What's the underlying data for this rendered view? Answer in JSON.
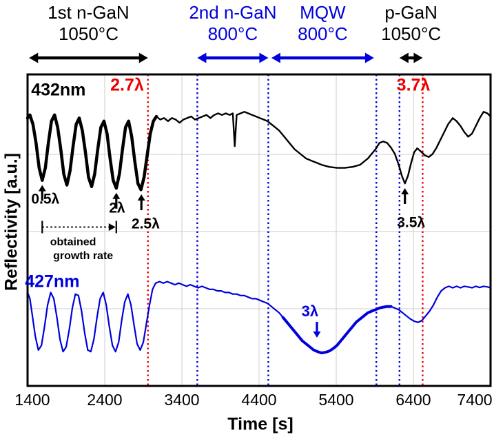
{
  "chart_data": {
    "type": "line",
    "xlabel": "Time [s]",
    "ylabel": "Reflectivity [a.u.]",
    "x_range": [
      1400,
      7400
    ],
    "x_ticks": [
      1400,
      2400,
      3400,
      4400,
      5400,
      6400,
      7400
    ],
    "ylim": [
      0,
      100
    ],
    "y_units": "arbitrary (no tick labels shown)",
    "grid": true,
    "colors": {
      "blue": "#0000dd",
      "red": "#ee0000",
      "grid": "#cccccc",
      "black": "#000000"
    },
    "regions": [
      {
        "label": "1st n-GaN",
        "temp": "1050°C",
        "color": "#000000",
        "t0": 1420,
        "t1": 2960
      },
      {
        "label": "2nd n-GaN",
        "temp": "800°C",
        "color": "#0000dd",
        "t0": 3600,
        "t1": 4520
      },
      {
        "label": "MQW",
        "temp": "800°C",
        "color": "#0000dd",
        "t0": 4560,
        "t1": 5890
      },
      {
        "label": "p-GaN",
        "temp": "1050°C",
        "color": "#000000",
        "t0": 6220,
        "t1": 6520
      }
    ],
    "vlines": [
      {
        "t": 2960,
        "color": "#ee0000",
        "style": "dotted"
      },
      {
        "t": 3600,
        "color": "#0000dd",
        "style": "dotted"
      },
      {
        "t": 4520,
        "color": "#0000dd",
        "style": "dotted"
      },
      {
        "t": 5920,
        "color": "#0000dd",
        "style": "dotted"
      },
      {
        "t": 6220,
        "color": "#0000dd",
        "style": "dotted"
      },
      {
        "t": 6520,
        "color": "#ee0000",
        "style": "dotted"
      }
    ],
    "annotations": [
      {
        "text": "432nm",
        "color": "#000000",
        "t": 1800,
        "val": 95,
        "size": 25
      },
      {
        "text": "2.7λ",
        "color": "#ee0000",
        "t": 2690,
        "val": 96.5,
        "size": 25
      },
      {
        "text": "3.7λ",
        "color": "#ee0000",
        "t": 6400,
        "val": 96.5,
        "size": 25
      },
      {
        "text": "0.5λ",
        "color": "#000000",
        "t": 1630,
        "val": 60,
        "size": 21
      },
      {
        "text": "2λ",
        "color": "#000000",
        "t": 2560,
        "val": 57,
        "size": 21
      },
      {
        "text": "2.5λ",
        "color": "#000000",
        "t": 2930,
        "val": 52,
        "size": 21
      },
      {
        "text": "3.5λ",
        "color": "#000000",
        "t": 6370,
        "val": 52.5,
        "size": 21
      },
      {
        "text": "427nm",
        "color": "#0000dd",
        "t": 1720,
        "val": 33.5,
        "size": 25
      },
      {
        "text": "3λ",
        "color": "#0000dd",
        "t": 5060,
        "val": 24,
        "size": 22
      },
      {
        "text": "obtained",
        "color": "#000000",
        "t": 1990,
        "val": 46,
        "size": 16
      },
      {
        "text": "growth rate",
        "color": "#000000",
        "t": 2120,
        "val": 41.5,
        "size": 16
      }
    ],
    "arrows": [
      {
        "dir": "up",
        "t": 1590,
        "tip_val": 64.5,
        "color": "#000000",
        "points_to": "0.5λ"
      },
      {
        "dir": "up",
        "t": 2550,
        "tip_val": 62,
        "color": "#000000",
        "points_to": "2λ"
      },
      {
        "dir": "up",
        "t": 2875,
        "tip_val": 61.5,
        "color": "#000000",
        "points_to": "2.5λ"
      },
      {
        "dir": "up",
        "t": 6290,
        "tip_val": 63.5,
        "color": "#000000",
        "points_to": "3.5λ"
      },
      {
        "dir": "down",
        "t": 5150,
        "tip_val": 15.5,
        "color": "#0000dd",
        "points_to": "3λ"
      }
    ],
    "measure_arrow": {
      "t0": 1590,
      "t1": 2550,
      "val": 51,
      "label": "obtained growth rate"
    },
    "series": [
      {
        "name": "432nm",
        "color": "#000000",
        "width": 2.4,
        "bold_width": 4.5,
        "bold_range": [
          1400,
          3080
        ],
        "points": [
          [
            1400,
            86
          ],
          [
            1430,
            87
          ],
          [
            1470,
            84
          ],
          [
            1510,
            78
          ],
          [
            1550,
            70
          ],
          [
            1590,
            66
          ],
          [
            1630,
            70
          ],
          [
            1670,
            78
          ],
          [
            1710,
            85
          ],
          [
            1750,
            87
          ],
          [
            1790,
            83
          ],
          [
            1830,
            76
          ],
          [
            1870,
            68
          ],
          [
            1910,
            64.5
          ],
          [
            1950,
            69
          ],
          [
            1990,
            77
          ],
          [
            2030,
            84
          ],
          [
            2070,
            86
          ],
          [
            2110,
            82
          ],
          [
            2150,
            75
          ],
          [
            2190,
            67
          ],
          [
            2230,
            64
          ],
          [
            2270,
            68
          ],
          [
            2310,
            76
          ],
          [
            2350,
            83
          ],
          [
            2390,
            85
          ],
          [
            2430,
            81
          ],
          [
            2470,
            73
          ],
          [
            2510,
            66
          ],
          [
            2550,
            63.5
          ],
          [
            2590,
            68
          ],
          [
            2630,
            76
          ],
          [
            2670,
            83
          ],
          [
            2710,
            85
          ],
          [
            2750,
            80
          ],
          [
            2790,
            72
          ],
          [
            2830,
            65
          ],
          [
            2870,
            63
          ],
          [
            2910,
            67
          ],
          [
            2950,
            74
          ],
          [
            2990,
            81
          ],
          [
            3030,
            85
          ],
          [
            3070,
            86.5
          ],
          [
            3120,
            85.5
          ],
          [
            3170,
            86
          ],
          [
            3220,
            85
          ],
          [
            3270,
            86
          ],
          [
            3320,
            85.5
          ],
          [
            3370,
            84.5
          ],
          [
            3420,
            85.5
          ],
          [
            3470,
            86
          ],
          [
            3520,
            86.5
          ],
          [
            3570,
            85.5
          ],
          [
            3620,
            86
          ],
          [
            3670,
            86.5
          ],
          [
            3720,
            87
          ],
          [
            3770,
            86
          ],
          [
            3820,
            87
          ],
          [
            3870,
            87.5
          ],
          [
            3920,
            87
          ],
          [
            3970,
            87.5
          ],
          [
            4020,
            87
          ],
          [
            4060,
            87.5
          ],
          [
            4085,
            77
          ],
          [
            4110,
            87
          ],
          [
            4160,
            87.5
          ],
          [
            4210,
            88
          ],
          [
            4260,
            87.5
          ],
          [
            4310,
            87
          ],
          [
            4360,
            86.5
          ],
          [
            4410,
            86
          ],
          [
            4460,
            85.5
          ],
          [
            4510,
            85
          ],
          [
            4560,
            84
          ],
          [
            4610,
            83
          ],
          [
            4660,
            82
          ],
          [
            4710,
            80.5
          ],
          [
            4760,
            79
          ],
          [
            4810,
            77.5
          ],
          [
            4860,
            76
          ],
          [
            4910,
            75
          ],
          [
            4960,
            74
          ],
          [
            5010,
            73
          ],
          [
            5060,
            72.5
          ],
          [
            5110,
            72
          ],
          [
            5160,
            71.5
          ],
          [
            5210,
            71
          ],
          [
            5310,
            70.3
          ],
          [
            5410,
            70
          ],
          [
            5510,
            70
          ],
          [
            5610,
            70.3
          ],
          [
            5710,
            71
          ],
          [
            5810,
            73
          ],
          [
            5910,
            76
          ],
          [
            5960,
            78
          ],
          [
            6010,
            78.5
          ],
          [
            6060,
            78
          ],
          [
            6110,
            76.5
          ],
          [
            6160,
            74.5
          ],
          [
            6210,
            71
          ],
          [
            6250,
            67.5
          ],
          [
            6290,
            65
          ],
          [
            6330,
            67.5
          ],
          [
            6370,
            71.5
          ],
          [
            6410,
            75
          ],
          [
            6450,
            76.3
          ],
          [
            6500,
            75.2
          ],
          [
            6550,
            74
          ],
          [
            6600,
            73.5
          ],
          [
            6650,
            74.5
          ],
          [
            6700,
            76.5
          ],
          [
            6750,
            79
          ],
          [
            6800,
            81.5
          ],
          [
            6850,
            84
          ],
          [
            6910,
            86
          ],
          [
            6960,
            85
          ],
          [
            7010,
            83.5
          ],
          [
            7060,
            81.5
          ],
          [
            7110,
            80
          ],
          [
            7160,
            81
          ],
          [
            7210,
            83.5
          ],
          [
            7260,
            86
          ],
          [
            7310,
            88
          ],
          [
            7360,
            87.5
          ],
          [
            7400,
            86.5
          ]
        ]
      },
      {
        "name": "427nm",
        "color": "#0000dd",
        "width": 2.2,
        "bold_width": 4,
        "bold_range": [
          4710,
          6110
        ],
        "points": [
          [
            1400,
            30
          ],
          [
            1430,
            28
          ],
          [
            1460,
            23
          ],
          [
            1500,
            16
          ],
          [
            1540,
            11.5
          ],
          [
            1580,
            13
          ],
          [
            1620,
            19
          ],
          [
            1660,
            26
          ],
          [
            1700,
            30
          ],
          [
            1740,
            28
          ],
          [
            1780,
            22
          ],
          [
            1820,
            15
          ],
          [
            1860,
            11
          ],
          [
            1900,
            12.5
          ],
          [
            1940,
            18
          ],
          [
            1980,
            25
          ],
          [
            2020,
            29.5
          ],
          [
            2060,
            29
          ],
          [
            2100,
            24
          ],
          [
            2140,
            17
          ],
          [
            2180,
            11.5
          ],
          [
            2220,
            11
          ],
          [
            2260,
            15
          ],
          [
            2300,
            22
          ],
          [
            2340,
            28
          ],
          [
            2380,
            30
          ],
          [
            2420,
            26
          ],
          [
            2460,
            19
          ],
          [
            2500,
            13
          ],
          [
            2540,
            11
          ],
          [
            2580,
            14
          ],
          [
            2620,
            21
          ],
          [
            2660,
            27
          ],
          [
            2700,
            29.5
          ],
          [
            2740,
            26
          ],
          [
            2780,
            19.5
          ],
          [
            2820,
            13.5
          ],
          [
            2860,
            11.5
          ],
          [
            2900,
            14
          ],
          [
            2940,
            20
          ],
          [
            2980,
            26
          ],
          [
            3020,
            31
          ],
          [
            3060,
            33
          ],
          [
            3110,
            33.5
          ],
          [
            3160,
            33
          ],
          [
            3210,
            33.5
          ],
          [
            3260,
            33
          ],
          [
            3310,
            32.5
          ],
          [
            3360,
            33
          ],
          [
            3410,
            32.5
          ],
          [
            3460,
            32
          ],
          [
            3510,
            32.5
          ],
          [
            3560,
            32
          ],
          [
            3610,
            31.5
          ],
          [
            3660,
            32
          ],
          [
            3710,
            31.5
          ],
          [
            3760,
            31
          ],
          [
            3810,
            31
          ],
          [
            3860,
            30.5
          ],
          [
            3910,
            30.5
          ],
          [
            3960,
            30
          ],
          [
            4010,
            30
          ],
          [
            4060,
            29.5
          ],
          [
            4110,
            29.5
          ],
          [
            4160,
            29
          ],
          [
            4210,
            29
          ],
          [
            4260,
            28.5
          ],
          [
            4310,
            28
          ],
          [
            4360,
            28
          ],
          [
            4410,
            27.5
          ],
          [
            4460,
            27
          ],
          [
            4510,
            26.5
          ],
          [
            4560,
            25.5
          ],
          [
            4610,
            24.5
          ],
          [
            4660,
            23.5
          ],
          [
            4710,
            22
          ],
          [
            4760,
            20.5
          ],
          [
            4810,
            19
          ],
          [
            4860,
            17.5
          ],
          [
            4910,
            16
          ],
          [
            4960,
            14.5
          ],
          [
            5010,
            13.5
          ],
          [
            5060,
            12.5
          ],
          [
            5110,
            11.5
          ],
          [
            5160,
            11
          ],
          [
            5210,
            10.6
          ],
          [
            5260,
            10.8
          ],
          [
            5310,
            11.2
          ],
          [
            5360,
            12
          ],
          [
            5410,
            13
          ],
          [
            5460,
            14.5
          ],
          [
            5510,
            16
          ],
          [
            5560,
            17.5
          ],
          [
            5610,
            19
          ],
          [
            5660,
            20.5
          ],
          [
            5710,
            21.5
          ],
          [
            5760,
            22.5
          ],
          [
            5810,
            23.5
          ],
          [
            5860,
            24
          ],
          [
            5910,
            24.5
          ],
          [
            5960,
            25
          ],
          [
            6010,
            25.3
          ],
          [
            6060,
            25.5
          ],
          [
            6110,
            25.5
          ],
          [
            6160,
            25
          ],
          [
            6210,
            24.5
          ],
          [
            6260,
            23.5
          ],
          [
            6310,
            22.5
          ],
          [
            6360,
            21.5
          ],
          [
            6410,
            20.8
          ],
          [
            6460,
            20.4
          ],
          [
            6510,
            21
          ],
          [
            6560,
            22.5
          ],
          [
            6610,
            24
          ],
          [
            6660,
            26
          ],
          [
            6710,
            28.5
          ],
          [
            6760,
            30.5
          ],
          [
            6810,
            31.5
          ],
          [
            6860,
            32
          ],
          [
            6910,
            31.5
          ],
          [
            6960,
            32
          ],
          [
            7010,
            31.5
          ],
          [
            7060,
            32
          ],
          [
            7110,
            31.8
          ],
          [
            7160,
            31.5
          ],
          [
            7210,
            32
          ],
          [
            7260,
            31.6
          ],
          [
            7310,
            32
          ],
          [
            7360,
            31.8
          ],
          [
            7400,
            31.5
          ]
        ]
      }
    ]
  }
}
